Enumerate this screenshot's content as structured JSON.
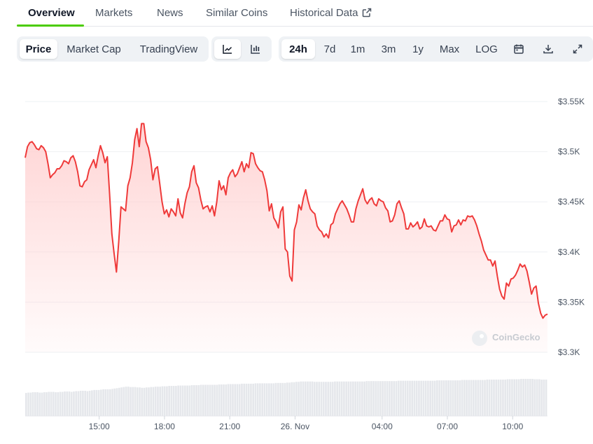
{
  "tabs": [
    {
      "label": "Overview",
      "active": true
    },
    {
      "label": "Markets",
      "active": false
    },
    {
      "label": "News",
      "active": false
    },
    {
      "label": "Similar Coins",
      "active": false
    },
    {
      "label": "Historical Data",
      "active": false,
      "icon": "external-link-icon"
    }
  ],
  "toolbar": {
    "metrics": [
      {
        "label": "Price",
        "selected": true
      },
      {
        "label": "Market Cap",
        "selected": false
      },
      {
        "label": "TradingView",
        "selected": false
      }
    ],
    "chart_types": [
      {
        "icon": "line-chart-icon",
        "selected": true
      },
      {
        "icon": "candlestick-chart-icon",
        "selected": false
      }
    ],
    "ranges": [
      {
        "label": "24h",
        "selected": true
      },
      {
        "label": "7d",
        "selected": false
      },
      {
        "label": "1m",
        "selected": false
      },
      {
        "label": "3m",
        "selected": false
      },
      {
        "label": "1y",
        "selected": false
      },
      {
        "label": "Max",
        "selected": false
      },
      {
        "label": "LOG",
        "selected": false
      }
    ],
    "tools": [
      {
        "icon": "calendar-icon"
      },
      {
        "icon": "download-icon"
      },
      {
        "icon": "fullscreen-icon"
      }
    ]
  },
  "colors": {
    "line": "#ef3a3a",
    "fill": "#ffd0d0",
    "volume": "#e5e7eb",
    "accent": "#4bcc00"
  },
  "watermark": "CoinGecko",
  "chart_data": {
    "type": "area",
    "x_start_hour": 11.6,
    "x_end_hour": 35.6,
    "x_ticks": [
      {
        "hour": 15,
        "label": "15:00"
      },
      {
        "hour": 18,
        "label": "18:00"
      },
      {
        "hour": 21,
        "label": "21:00"
      },
      {
        "hour": 24,
        "label": "26. Nov"
      },
      {
        "hour": 28,
        "label": "04:00"
      },
      {
        "hour": 31,
        "label": "07:00"
      },
      {
        "hour": 34,
        "label": "10:00"
      }
    ],
    "ylim": [
      3300,
      3550
    ],
    "y_ticks": [
      {
        "value": 3550,
        "label": "$3.55K"
      },
      {
        "value": 3500,
        "label": "$3.5K"
      },
      {
        "value": 3450,
        "label": "$3.45K"
      },
      {
        "value": 3400,
        "label": "$3.4K"
      },
      {
        "value": 3350,
        "label": "$3.35K"
      },
      {
        "value": 3300,
        "label": "$3.3K"
      }
    ],
    "grid": true,
    "legend": "none",
    "price": [
      3494,
      3505,
      3509,
      3510,
      3507,
      3503,
      3502,
      3506,
      3504,
      3500,
      3488,
      3474,
      3477,
      3479,
      3483,
      3483,
      3486,
      3491,
      3490,
      3488,
      3494,
      3496,
      3490,
      3480,
      3466,
      3465,
      3470,
      3472,
      3482,
      3487,
      3492,
      3484,
      3496,
      3506,
      3499,
      3489,
      3495,
      3458,
      3418,
      3398,
      3380,
      3410,
      3445,
      3443,
      3441,
      3466,
      3474,
      3489,
      3512,
      3523,
      3505,
      3528,
      3528,
      3510,
      3504,
      3492,
      3472,
      3483,
      3485,
      3468,
      3450,
      3438,
      3442,
      3435,
      3443,
      3440,
      3436,
      3453,
      3439,
      3434,
      3448,
      3459,
      3465,
      3480,
      3486,
      3469,
      3464,
      3452,
      3443,
      3445,
      3446,
      3440,
      3446,
      3436,
      3450,
      3471,
      3462,
      3466,
      3457,
      3474,
      3479,
      3482,
      3475,
      3478,
      3484,
      3490,
      3480,
      3488,
      3484,
      3499,
      3498,
      3488,
      3484,
      3481,
      3480,
      3472,
      3461,
      3441,
      3448,
      3434,
      3430,
      3424,
      3440,
      3445,
      3403,
      3400,
      3376,
      3371,
      3422,
      3430,
      3447,
      3442,
      3454,
      3462,
      3451,
      3443,
      3440,
      3438,
      3426,
      3422,
      3420,
      3415,
      3418,
      3414,
      3427,
      3429,
      3438,
      3443,
      3448,
      3451,
      3447,
      3443,
      3437,
      3430,
      3430,
      3443,
      3451,
      3457,
      3463,
      3452,
      3448,
      3452,
      3454,
      3448,
      3446,
      3453,
      3451,
      3450,
      3444,
      3441,
      3430,
      3431,
      3437,
      3448,
      3451,
      3444,
      3438,
      3423,
      3423,
      3429,
      3425,
      3427,
      3430,
      3423,
      3425,
      3433,
      3426,
      3425,
      3426,
      3422,
      3421,
      3426,
      3431,
      3431,
      3437,
      3433,
      3432,
      3420,
      3426,
      3427,
      3432,
      3427,
      3432,
      3431,
      3436,
      3435,
      3436,
      3432,
      3426,
      3418,
      3411,
      3402,
      3397,
      3392,
      3392,
      3386,
      3391,
      3376,
      3363,
      3356,
      3353,
      3369,
      3366,
      3373,
      3374,
      3377,
      3382,
      3388,
      3385,
      3387,
      3381,
      3370,
      3358,
      3364,
      3366,
      3349,
      3339,
      3334,
      3337,
      3338
    ],
    "volume_level": [
      0.62,
      0.63,
      0.63,
      0.64,
      0.64,
      0.64,
      0.63,
      0.63,
      0.64,
      0.64,
      0.65,
      0.65,
      0.65,
      0.64,
      0.64,
      0.65,
      0.65,
      0.66,
      0.66,
      0.66,
      0.65,
      0.66,
      0.67,
      0.67,
      0.68,
      0.68,
      0.68,
      0.67,
      0.68,
      0.69,
      0.7,
      0.7,
      0.7,
      0.71,
      0.72,
      0.72,
      0.72,
      0.72,
      0.73,
      0.74,
      0.75,
      0.76,
      0.77,
      0.78,
      0.79,
      0.79,
      0.78,
      0.78,
      0.78,
      0.77,
      0.77,
      0.76,
      0.76,
      0.77,
      0.77,
      0.78,
      0.78,
      0.79,
      0.79,
      0.79,
      0.8,
      0.8,
      0.8,
      0.81,
      0.81,
      0.81,
      0.81,
      0.82,
      0.82,
      0.82,
      0.82,
      0.82,
      0.82,
      0.83,
      0.83,
      0.83,
      0.83,
      0.84,
      0.84,
      0.84,
      0.84,
      0.84,
      0.84,
      0.84,
      0.84,
      0.85,
      0.85,
      0.85,
      0.85,
      0.86,
      0.86,
      0.86,
      0.86,
      0.86,
      0.86,
      0.87,
      0.87,
      0.87,
      0.87,
      0.87,
      0.87,
      0.88,
      0.88,
      0.88,
      0.88,
      0.88,
      0.88,
      0.88,
      0.88,
      0.88,
      0.89,
      0.89,
      0.89,
      0.89,
      0.89,
      0.9,
      0.9,
      0.91,
      0.91,
      0.92,
      0.92,
      0.93,
      0.93,
      0.93,
      0.93,
      0.93,
      0.93,
      0.92,
      0.92,
      0.92,
      0.92,
      0.92,
      0.92,
      0.92,
      0.92,
      0.92,
      0.93,
      0.93,
      0.93,
      0.93,
      0.93,
      0.93,
      0.93,
      0.93,
      0.93,
      0.93,
      0.93,
      0.93,
      0.93,
      0.93,
      0.94,
      0.94,
      0.94,
      0.94,
      0.94,
      0.94,
      0.94,
      0.94,
      0.94,
      0.94,
      0.94,
      0.94,
      0.94,
      0.94,
      0.95,
      0.95,
      0.95,
      0.95,
      0.95,
      0.95,
      0.95,
      0.95,
      0.95,
      0.95,
      0.95,
      0.95,
      0.95,
      0.95,
      0.95,
      0.95,
      0.95,
      0.96,
      0.96,
      0.96,
      0.96,
      0.96,
      0.96,
      0.96,
      0.96,
      0.96,
      0.96,
      0.96,
      0.97,
      0.97,
      0.97,
      0.97,
      0.97,
      0.97,
      0.97,
      0.97,
      0.97,
      0.97,
      0.97,
      0.98,
      0.98,
      0.98,
      0.98,
      0.98,
      0.98,
      0.98,
      0.98,
      0.98,
      0.99,
      0.99,
      0.99,
      0.99,
      0.99,
      0.99,
      1.0,
      1.0,
      1.0,
      1.0,
      1.0,
      1.0,
      0.99,
      0.99,
      0.99,
      0.98,
      0.98,
      0.98
    ]
  }
}
